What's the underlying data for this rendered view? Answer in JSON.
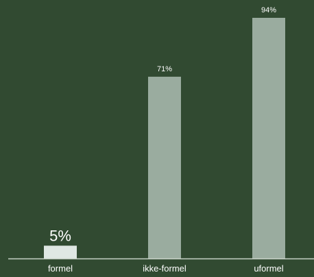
{
  "chart_data": {
    "type": "bar",
    "categories": [
      "formel",
      "ikke-formel",
      "uformel"
    ],
    "values": [
      5,
      71,
      94
    ],
    "data_labels": [
      "5%",
      "71%",
      "94%"
    ],
    "highlighted_category": "formel",
    "ylim": [
      0,
      94
    ],
    "grid": false,
    "legend": "none",
    "colors": {
      "background": "#314a31",
      "bar": "#9aac9f",
      "bar_highlight": "#dfe7e3",
      "axis": "#c8d2c8",
      "text": "#ffffff"
    }
  }
}
